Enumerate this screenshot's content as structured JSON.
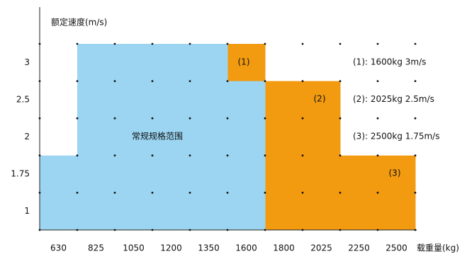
{
  "chart_data": {
    "type": "step-region",
    "ylabel": "额定速度(m/s)",
    "xlabel": "载重量(kg)",
    "categories": [
      630,
      825,
      1050,
      1200,
      1350,
      1600,
      1800,
      2025,
      2250,
      2500
    ],
    "ycategories": [
      1,
      1.75,
      2,
      2.5,
      3
    ],
    "series": [
      {
        "color": "#f29a10",
        "values": [
          null,
          null,
          null,
          null,
          null,
          3,
          2.5,
          2.5,
          1.75,
          1.75
        ]
      },
      {
        "name": "常规规格范围",
        "color": "#9bd5f2",
        "values": [
          1.75,
          3,
          3,
          3,
          3,
          2.5,
          null,
          null,
          null,
          null
        ]
      }
    ],
    "markers": [
      "(1)",
      "(2)",
      "(3)"
    ],
    "notes": [
      "(1): 1600kg 3m/s",
      "(2): 2025kg 2.5m/s",
      "(3): 2500kg 1.75m/s"
    ],
    "notes_color": "#f29a10",
    "grid": true
  }
}
